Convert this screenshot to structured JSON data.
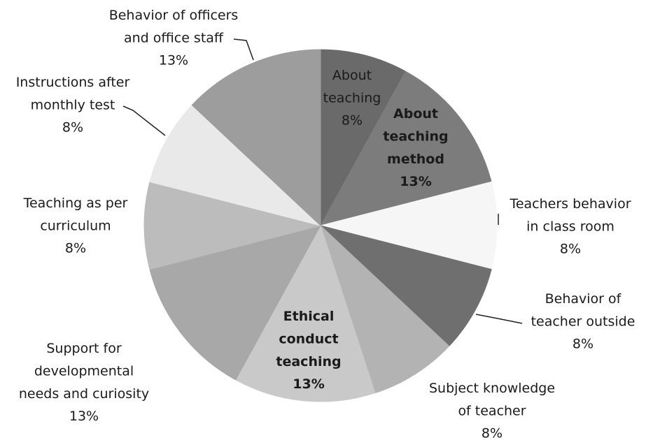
{
  "chart_data": {
    "type": "pie",
    "categories": [
      "About teaching",
      "About teaching method",
      "Teachers behavior in class room",
      "Behavior of teacher outside",
      "Subject knowledge of teacher",
      "Ethical conduct teaching",
      "Support for developmental needs and curiosity",
      "Teaching as per curriculum",
      "Instructions after monthly test",
      "Behavior of officers and office staff"
    ],
    "values": [
      8,
      13,
      8,
      8,
      8,
      13,
      13,
      8,
      8,
      13
    ],
    "value_labels": [
      "8%",
      "13%",
      "8%",
      "8%",
      "8%",
      "13%",
      "13%",
      "8%",
      "8%",
      "13%"
    ],
    "colors": [
      "#6a6a6a",
      "#7c7c7c",
      "#f6f6f6",
      "#6f6f6f",
      "#b3b3b3",
      "#c9c9c9",
      "#a8a8a8",
      "#bcbcbc",
      "#e9e9e9",
      "#9d9d9d"
    ]
  }
}
